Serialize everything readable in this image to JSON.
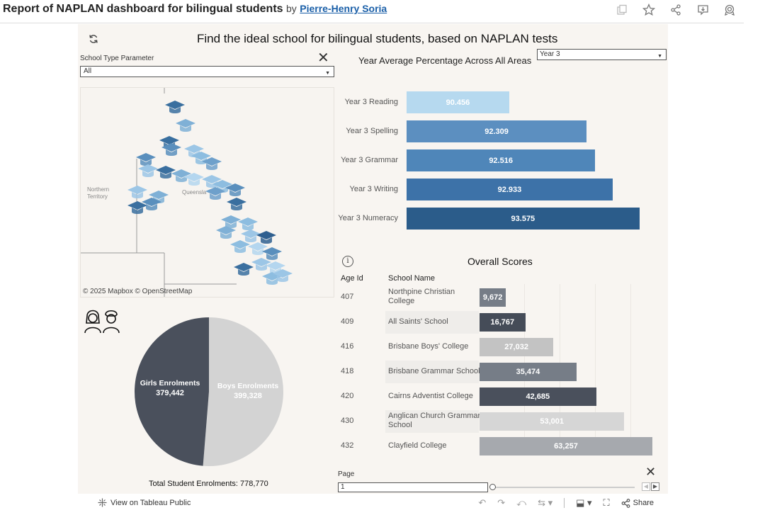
{
  "header": {
    "title": "Report of NAPLAN dashboard for bilingual students",
    "by": "by",
    "author": "Pierre-Henry Soria"
  },
  "dashboard": {
    "title": "Find the ideal school for bilingual students, based on NAPLAN tests",
    "school_type_label": "School Type Parameter",
    "school_type_value": "All",
    "map": {
      "label_nt": "Northern Territory",
      "label_qld": "Queensla",
      "attribution": "© 2025 Mapbox  © OpenStreetMap"
    },
    "total_enrolments": "Total Student Enrolments: 778,770",
    "year_chart_title": "Year Average Percentage Across All Areas",
    "year_select_value": "Year 3",
    "overall_title": "Overall Scores",
    "col_age": "Age Id",
    "col_school": "School Name",
    "page_label": "Page",
    "page_value": "1"
  },
  "colors": {
    "dark_slate": "#4a505c",
    "light_grey": "#d3d3d3",
    "bar_lightest": "#b6d9ef",
    "bar_dark": "#2b5c8a"
  },
  "chart_data": [
    {
      "type": "bar",
      "title": "Year Average Percentage Across All Areas",
      "orientation": "horizontal",
      "categories": [
        "Year 3 Reading",
        "Year 3 Spelling",
        "Year 3 Grammar",
        "Year 3 Writing",
        "Year 3 Numeracy"
      ],
      "values": [
        90.456,
        92.309,
        92.516,
        92.933,
        93.575
      ],
      "value_labels": [
        "90.456",
        "92.309",
        "92.516",
        "92.933",
        "93.575"
      ],
      "colors": [
        "#b6d9ef",
        "#5c8fc0",
        "#4f86b9",
        "#3d72a8",
        "#2b5c8a"
      ]
    },
    {
      "type": "pie",
      "title": "Enrolments",
      "slices": [
        {
          "name": "Girls Enrolments",
          "value": 379442,
          "label": "379,442",
          "color": "#4a505c"
        },
        {
          "name": "Boys Enrolments",
          "value": 399328,
          "label": "399,328",
          "color": "#d3d3d3"
        }
      ]
    },
    {
      "type": "bar",
      "title": "Overall Scores",
      "orientation": "horizontal",
      "rows": [
        {
          "age_id": "407",
          "school": "Northpine Christian College",
          "value": 9672,
          "label": "9,672",
          "color": "#767d87"
        },
        {
          "age_id": "409",
          "school": "All Saints' School",
          "value": 16767,
          "label": "16,767",
          "color": "#454c58"
        },
        {
          "age_id": "416",
          "school": "Brisbane Boys' College",
          "value": 27032,
          "label": "27,032",
          "color": "#c3c3c3"
        },
        {
          "age_id": "418",
          "school": "Brisbane Grammar School",
          "value": 35474,
          "label": "35,474",
          "color": "#767d87"
        },
        {
          "age_id": "420",
          "school": "Cairns Adventist College",
          "value": 42685,
          "label": "42,685",
          "color": "#4a505c"
        },
        {
          "age_id": "430",
          "school": "Anglican Church Grammar School",
          "value": 53001,
          "label": "53,001",
          "color": "#d6d6d6"
        },
        {
          "age_id": "432",
          "school": "Clayfield College",
          "value": 63257,
          "label": "63,257",
          "color": "#a6a9ae"
        }
      ],
      "xlim": [
        0,
        65000
      ]
    }
  ],
  "footer": {
    "view_public": "View on Tableau Public",
    "share": "Share"
  }
}
